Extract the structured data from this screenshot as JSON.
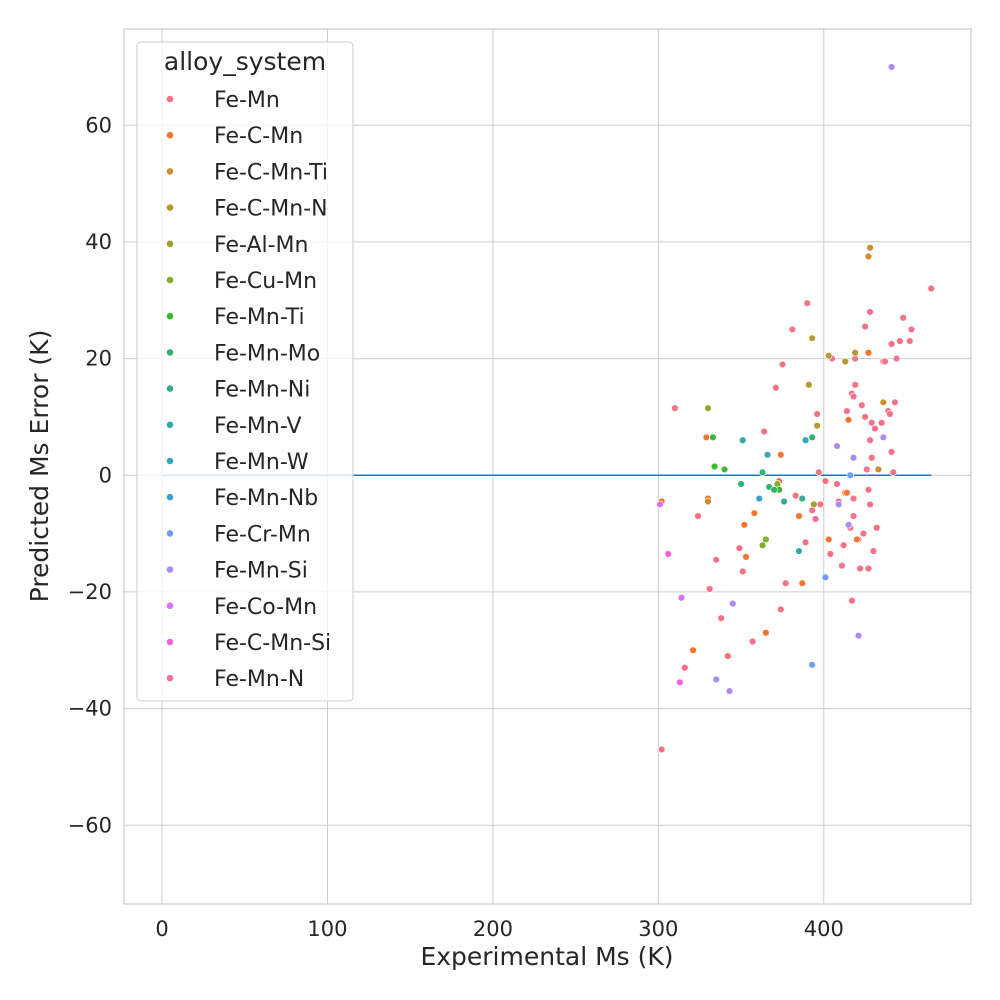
{
  "chart_data": {
    "type": "scatter",
    "title": "",
    "xlabel": "Experimental Ms (K)",
    "ylabel": "Predicted Ms Error (K)",
    "xlim": [
      -23,
      489
    ],
    "ylim": [
      -73.5,
      76.5
    ],
    "xticks": [
      0,
      100,
      200,
      300,
      400
    ],
    "yticks": [
      -60,
      -40,
      -20,
      0,
      20,
      40,
      60
    ],
    "grid": true,
    "zero_line": {
      "x": [
        0,
        465
      ],
      "y": 0,
      "color": "#1f77b4"
    },
    "legend": {
      "title": "alloy_system",
      "position": "top-left"
    },
    "series": [
      {
        "name": "Fe-Mn",
        "color": "#f77189",
        "points": [
          [
            302,
            -47
          ],
          [
            310,
            11.5
          ],
          [
            316,
            -33
          ],
          [
            324,
            -7
          ],
          [
            331,
            -19.5
          ],
          [
            335,
            -14.5
          ],
          [
            338,
            -24.5
          ],
          [
            342,
            -31
          ],
          [
            349,
            -12.5
          ],
          [
            351,
            -16.5
          ],
          [
            357,
            -28.5
          ],
          [
            364,
            7.5
          ],
          [
            371,
            15
          ],
          [
            374,
            -23
          ],
          [
            375,
            19
          ],
          [
            377,
            -18.5
          ],
          [
            381,
            25
          ],
          [
            383,
            -3.5
          ],
          [
            389,
            -11.5
          ],
          [
            390,
            29.5
          ],
          [
            393,
            -6
          ],
          [
            395,
            -7.5
          ],
          [
            396,
            10.5
          ],
          [
            397,
            0.5
          ],
          [
            398,
            -5
          ],
          [
            401,
            -1
          ],
          [
            404,
            -13.5
          ],
          [
            405,
            20
          ],
          [
            408,
            -1.5
          ],
          [
            409,
            -4.5
          ],
          [
            411,
            -15.5
          ],
          [
            412,
            -12
          ],
          [
            414,
            11
          ],
          [
            416,
            -9
          ],
          [
            417,
            -21.5
          ],
          [
            417,
            14
          ],
          [
            418,
            -7
          ],
          [
            418,
            -4
          ],
          [
            418,
            13.5
          ],
          [
            419,
            20
          ],
          [
            419,
            15.5
          ],
          [
            421,
            -11
          ],
          [
            422,
            -16
          ],
          [
            423,
            12
          ],
          [
            424,
            -10
          ],
          [
            425,
            25.5
          ],
          [
            425,
            10
          ],
          [
            426,
            1
          ],
          [
            427,
            -16
          ],
          [
            427,
            -2.5
          ],
          [
            428,
            28
          ],
          [
            428,
            6
          ],
          [
            428,
            -5
          ],
          [
            429,
            3
          ],
          [
            429,
            9
          ],
          [
            430,
            -13
          ],
          [
            431,
            8
          ],
          [
            432,
            -9
          ],
          [
            433,
            1
          ],
          [
            435,
            9
          ],
          [
            436,
            19.5
          ],
          [
            437,
            19.5
          ],
          [
            439,
            11
          ],
          [
            440,
            10.5
          ],
          [
            441,
            22.5
          ],
          [
            441,
            4
          ],
          [
            442,
            0.5
          ],
          [
            443,
            12.5
          ],
          [
            444,
            20
          ],
          [
            446,
            23
          ],
          [
            448,
            27
          ],
          [
            452,
            23
          ],
          [
            453,
            25
          ],
          [
            465,
            32
          ]
        ]
      },
      {
        "name": "Fe-C-Mn",
        "color": "#f57530",
        "points": [
          [
            302,
            -4.5
          ],
          [
            321,
            -30
          ],
          [
            329,
            6.5
          ],
          [
            330,
            -4
          ],
          [
            352,
            -8.5
          ],
          [
            353,
            -14
          ],
          [
            358,
            -6.5
          ],
          [
            365,
            -27
          ],
          [
            373,
            -1
          ],
          [
            374,
            3.5
          ],
          [
            385,
            -7
          ],
          [
            387,
            -18.5
          ],
          [
            403,
            -11
          ],
          [
            413,
            -3
          ],
          [
            414,
            -3
          ],
          [
            415,
            9.5
          ],
          [
            420,
            -11
          ],
          [
            427,
            21
          ]
        ]
      },
      {
        "name": "Fe-C-Mn-Ti",
        "color": "#d08c31",
        "points": [
          [
            330,
            -4.5
          ],
          [
            372,
            -1.5
          ],
          [
            427,
            37.5
          ],
          [
            428,
            39
          ],
          [
            433,
            1
          ],
          [
            436,
            12.5
          ]
        ]
      },
      {
        "name": "Fe-C-Mn-N",
        "color": "#b59a31",
        "points": [
          [
            391,
            15.5
          ],
          [
            393,
            23.5
          ],
          [
            396,
            8.5
          ],
          [
            403,
            20.5
          ],
          [
            413,
            19.5
          ],
          [
            419,
            21
          ]
        ]
      },
      {
        "name": "Fe-Al-Mn",
        "color": "#a0a031",
        "points": [
          [
            330,
            11.5
          ],
          [
            394,
            -5
          ]
        ]
      },
      {
        "name": "Fe-Cu-Mn",
        "color": "#80ad31",
        "points": [
          [
            363,
            -12
          ],
          [
            365,
            -11
          ],
          [
            372,
            -1.5
          ]
        ]
      },
      {
        "name": "Fe-Mn-Ti",
        "color": "#3ab82f",
        "points": [
          [
            333,
            6.5
          ],
          [
            334,
            1.5
          ],
          [
            340,
            1
          ],
          [
            373,
            -2.5
          ]
        ]
      },
      {
        "name": "Fe-Mn-Mo",
        "color": "#33b171",
        "points": [
          [
            350,
            -1.5
          ],
          [
            363,
            0.5
          ],
          [
            367,
            -2
          ],
          [
            370,
            -2.5
          ],
          [
            393,
            6.5
          ]
        ]
      },
      {
        "name": "Fe-Mn-Ni",
        "color": "#35ad95",
        "points": [
          [
            376,
            -4.5
          ],
          [
            387,
            -4
          ]
        ]
      },
      {
        "name": "Fe-Mn-V",
        "color": "#36a9a8",
        "points": [
          [
            351,
            6
          ],
          [
            385,
            -13
          ]
        ]
      },
      {
        "name": "Fe-Mn-W",
        "color": "#38a6b8",
        "points": [
          [
            366,
            3.5
          ],
          [
            389,
            6
          ]
        ]
      },
      {
        "name": "Fe-Mn-Nb",
        "color": "#39a2c8",
        "points": [
          [
            361,
            -4
          ]
        ]
      },
      {
        "name": "Fe-Cr-Mn",
        "color": "#6e9ef4",
        "points": [
          [
            393,
            -32.5
          ],
          [
            401,
            -17.5
          ],
          [
            416,
            0
          ]
        ]
      },
      {
        "name": "Fe-Mn-Si",
        "color": "#ad8bf4",
        "points": [
          [
            335,
            -35
          ],
          [
            343,
            -37
          ],
          [
            345,
            -22
          ],
          [
            408,
            5
          ],
          [
            409,
            -5
          ],
          [
            415,
            -8.5
          ],
          [
            418,
            3
          ],
          [
            421,
            -27.5
          ],
          [
            436,
            6.5
          ],
          [
            441,
            70
          ]
        ]
      },
      {
        "name": "Fe-Co-Mn",
        "color": "#dc6ff4",
        "points": [
          [
            301,
            -5
          ],
          [
            314,
            -21
          ]
        ]
      },
      {
        "name": "Fe-C-Mn-Si",
        "color": "#f462d9",
        "points": [
          [
            306,
            -13.5
          ],
          [
            313,
            -35.5
          ]
        ]
      },
      {
        "name": "Fe-Mn-N",
        "color": "#f56cac",
        "points": []
      }
    ]
  }
}
